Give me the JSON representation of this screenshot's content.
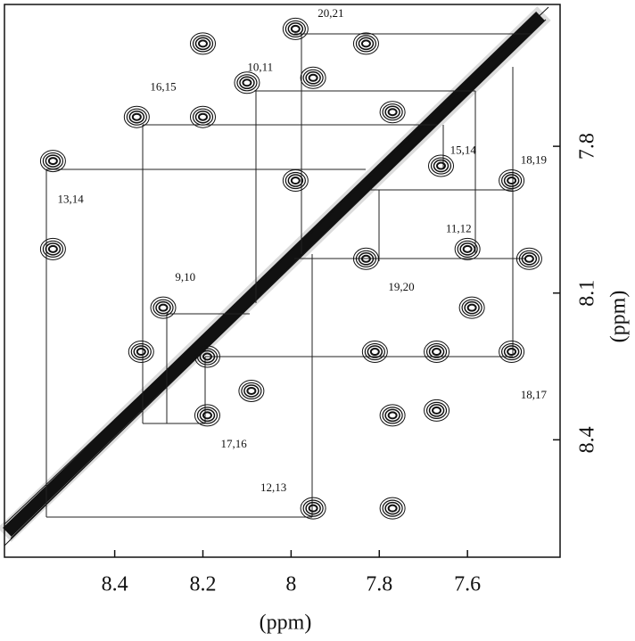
{
  "chart_data": {
    "type": "scatter",
    "x_label": "(ppm)",
    "y_label": "(ppm)",
    "xlim": [
      8.65,
      7.39
    ],
    "ylim": [
      7.51,
      8.64
    ],
    "xticks": [
      8.4,
      8.2,
      8.0,
      7.8,
      7.6
    ],
    "yticks": [
      7.8,
      8.1,
      8.4
    ],
    "color": "#111111",
    "x": [
      8.2,
      7.99,
      7.83,
      7.95,
      8.1,
      8.35,
      8.2,
      7.77,
      8.54,
      7.66,
      7.99,
      7.5,
      8.54,
      7.83,
      7.6,
      7.46,
      8.29,
      7.59,
      8.34,
      8.19,
      7.81,
      7.67,
      7.5,
      8.09,
      8.19,
      7.67,
      7.77,
      7.95,
      7.77
    ],
    "values": [
      7.59,
      7.56,
      7.59,
      7.66,
      7.67,
      7.74,
      7.74,
      7.73,
      7.83,
      7.84,
      7.87,
      7.87,
      8.01,
      8.03,
      8.01,
      8.03,
      8.13,
      8.13,
      8.22,
      8.23,
      8.22,
      8.22,
      8.22,
      8.3,
      8.35,
      8.34,
      8.35,
      8.54,
      8.54
    ],
    "annotations": [
      {
        "text": "20,21",
        "x": 7.91,
        "y": 7.53
      },
      {
        "text": "10,11",
        "x": 8.07,
        "y": 7.64
      },
      {
        "text": "16,15",
        "x": 8.29,
        "y": 7.68
      },
      {
        "text": "15,14",
        "x": 7.61,
        "y": 7.81
      },
      {
        "text": "18,19",
        "x": 7.45,
        "y": 7.83
      },
      {
        "text": "13,14",
        "x": 8.5,
        "y": 7.91
      },
      {
        "text": "11,12",
        "x": 7.62,
        "y": 7.97
      },
      {
        "text": "19,20",
        "x": 7.75,
        "y": 8.09
      },
      {
        "text": "9,10",
        "x": 8.24,
        "y": 8.07
      },
      {
        "text": "18,17",
        "x": 7.45,
        "y": 8.31
      },
      {
        "text": "17,16",
        "x": 8.13,
        "y": 8.41
      },
      {
        "text": "12,13",
        "x": 8.04,
        "y": 8.5
      }
    ]
  }
}
